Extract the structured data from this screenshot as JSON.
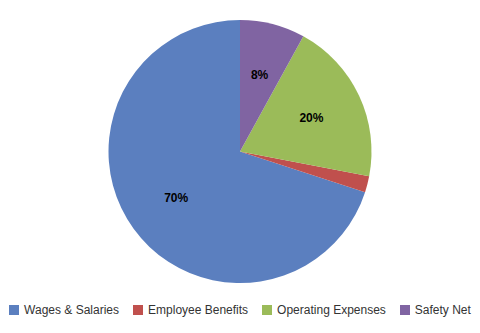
{
  "chart_data": {
    "type": "pie",
    "categories": [
      "Wages & Salaries",
      "Employee Benefits",
      "Operating Expenses",
      "Safety Net"
    ],
    "values": [
      70,
      2,
      20,
      8
    ],
    "value_labels": [
      "70%",
      null,
      "20%",
      "8%"
    ],
    "colors": [
      "#5B7FBF",
      "#C0504D",
      "#9BBB59",
      "#8064A2"
    ],
    "data_labels": true,
    "legend": "bottom"
  }
}
